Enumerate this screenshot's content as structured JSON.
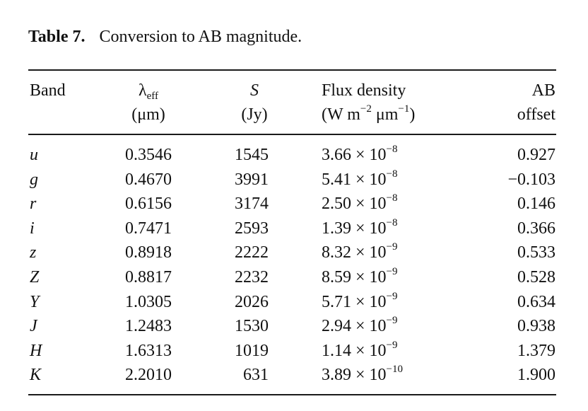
{
  "caption": {
    "label": "Table 7.",
    "text": "Conversion to AB magnitude."
  },
  "headers": {
    "band": "Band",
    "lambda_symbol": "λ",
    "lambda_sub": "eff",
    "lambda_unit": "(μm)",
    "s_symbol": "S",
    "s_unit": "(Jy)",
    "flux_line1": "Flux density",
    "flux_unit_a": "(W m",
    "flux_unit_exp1": "−2",
    "flux_unit_b": " μm",
    "flux_unit_exp2": "−1",
    "flux_unit_c": ")",
    "ab_line1": "AB",
    "ab_line2": "offset"
  },
  "rows": [
    {
      "band": "u",
      "lambda": "0.3546",
      "s": "1545",
      "flux_mant": "3.66 × 10",
      "flux_exp": "−8",
      "ab": "0.927"
    },
    {
      "band": "g",
      "lambda": "0.4670",
      "s": "3991",
      "flux_mant": "5.41 × 10",
      "flux_exp": "−8",
      "ab": "−0.103"
    },
    {
      "band": "r",
      "lambda": "0.6156",
      "s": "3174",
      "flux_mant": "2.50 × 10",
      "flux_exp": "−8",
      "ab": "0.146"
    },
    {
      "band": "i",
      "lambda": "0.7471",
      "s": "2593",
      "flux_mant": "1.39 × 10",
      "flux_exp": "−8",
      "ab": "0.366"
    },
    {
      "band": "z",
      "lambda": "0.8918",
      "s": "2222",
      "flux_mant": "8.32 × 10",
      "flux_exp": "−9",
      "ab": "0.533"
    },
    {
      "band": "Z",
      "lambda": "0.8817",
      "s": "2232",
      "flux_mant": "8.59 × 10",
      "flux_exp": "−9",
      "ab": "0.528"
    },
    {
      "band": "Y",
      "lambda": "1.0305",
      "s": "2026",
      "flux_mant": "5.71 × 10",
      "flux_exp": "−9",
      "ab": "0.634"
    },
    {
      "band": "J",
      "lambda": "1.2483",
      "s": "1530",
      "flux_mant": "2.94 × 10",
      "flux_exp": "−9",
      "ab": "0.938"
    },
    {
      "band": "H",
      "lambda": "1.6313",
      "s": "1019",
      "flux_mant": "1.14 × 10",
      "flux_exp": "−9",
      "ab": "1.379"
    },
    {
      "band": "K",
      "lambda": "2.2010",
      "s": "631",
      "flux_mant": "3.89 × 10",
      "flux_exp": "−10",
      "ab": "1.900"
    }
  ]
}
